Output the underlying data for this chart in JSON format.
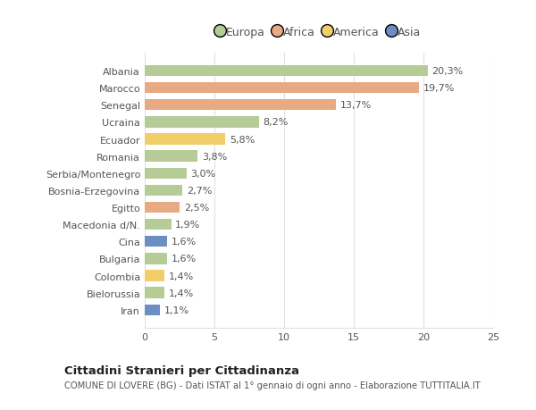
{
  "categories": [
    "Albania",
    "Marocco",
    "Senegal",
    "Ucraina",
    "Ecuador",
    "Romania",
    "Serbia/Montenegro",
    "Bosnia-Erzegovina",
    "Egitto",
    "Macedonia d/N.",
    "Cina",
    "Bulgaria",
    "Colombia",
    "Bielorussia",
    "Iran"
  ],
  "values": [
    20.3,
    19.7,
    13.7,
    8.2,
    5.8,
    3.8,
    3.0,
    2.7,
    2.5,
    1.9,
    1.6,
    1.6,
    1.4,
    1.4,
    1.1
  ],
  "colors": [
    "#b5cc96",
    "#e8aa82",
    "#e8aa82",
    "#b5cc96",
    "#f0ce6a",
    "#b5cc96",
    "#b5cc96",
    "#b5cc96",
    "#e8aa82",
    "#b5cc96",
    "#6b8ec4",
    "#b5cc96",
    "#f0ce6a",
    "#b5cc96",
    "#6b8ec4"
  ],
  "labels": [
    "20,3%",
    "19,7%",
    "13,7%",
    "8,2%",
    "5,8%",
    "3,8%",
    "3,0%",
    "2,7%",
    "2,5%",
    "1,9%",
    "1,6%",
    "1,6%",
    "1,4%",
    "1,4%",
    "1,1%"
  ],
  "legend": [
    {
      "label": "Europa",
      "color": "#b5cc96"
    },
    {
      "label": "Africa",
      "color": "#e8aa82"
    },
    {
      "label": "America",
      "color": "#f0ce6a"
    },
    {
      "label": "Asia",
      "color": "#6b8ec4"
    }
  ],
  "title": "Cittadini Stranieri per Cittadinanza",
  "subtitle": "COMUNE DI LOVERE (BG) - Dati ISTAT al 1° gennaio di ogni anno - Elaborazione TUTTITALIA.IT",
  "xlim": [
    0,
    25
  ],
  "xticks": [
    0,
    5,
    10,
    15,
    20,
    25
  ],
  "background_color": "#ffffff",
  "bar_height": 0.65,
  "grid_color": "#e0e0e0",
  "text_color": "#555555",
  "label_fontsize": 8.0,
  "tick_fontsize": 8.0
}
